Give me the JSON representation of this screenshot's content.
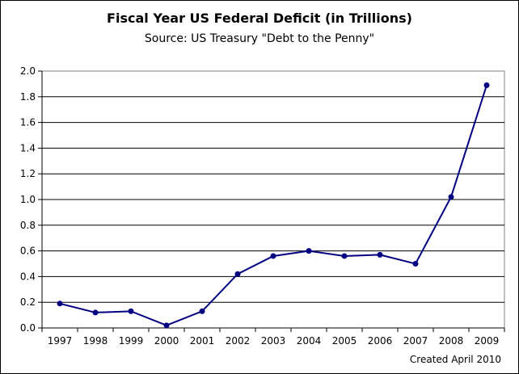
{
  "chart_data": {
    "type": "line",
    "title": "Fiscal Year US Federal Deficit (in Trillions)",
    "subtitle": "Source: US Treasury \"Debt to the Penny\"",
    "xlabel": "",
    "ylabel": "",
    "categories": [
      "1997",
      "1998",
      "1999",
      "2000",
      "2001",
      "2002",
      "2003",
      "2004",
      "2005",
      "2006",
      "2007",
      "2008",
      "2009"
    ],
    "values": [
      0.19,
      0.12,
      0.13,
      0.02,
      0.13,
      0.42,
      0.56,
      0.6,
      0.56,
      0.57,
      0.5,
      1.02,
      1.89
    ],
    "ylim": [
      0,
      2.0
    ],
    "yticks": [
      "0.0",
      "0.2",
      "0.4",
      "0.6",
      "0.8",
      "1.0",
      "1.2",
      "1.4",
      "1.6",
      "1.8",
      "2.0"
    ],
    "grid": true,
    "legend": "none",
    "line_color": "#000080",
    "annotation": "Created April 2010"
  }
}
